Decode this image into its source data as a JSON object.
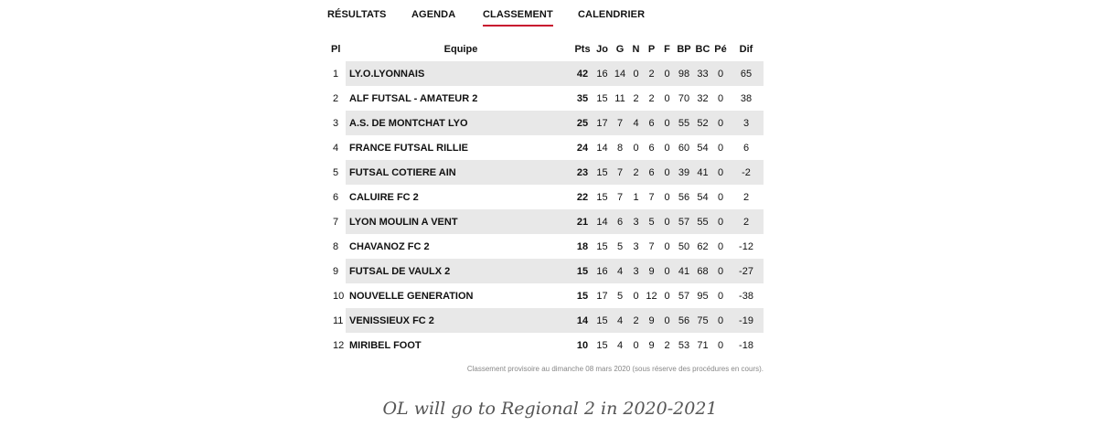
{
  "tabs": [
    {
      "label": "RÉSULTATS"
    },
    {
      "label": "AGENDA"
    },
    {
      "label": "CLASSEMENT"
    },
    {
      "label": "CALENDRIER"
    }
  ],
  "active_tab": "CLASSEMENT",
  "table": {
    "headers": [
      "Pl",
      "Equipe",
      "Pts",
      "Jo",
      "G",
      "N",
      "P",
      "F",
      "BP",
      "BC",
      "Pé",
      "Dif"
    ],
    "rows": [
      [
        "1",
        "LY.O.LYONNAIS",
        "42",
        "16",
        "14",
        "0",
        "2",
        "0",
        "98",
        "33",
        "0",
        "65"
      ],
      [
        "2",
        "ALF FUTSAL - AMATEUR 2",
        "35",
        "15",
        "11",
        "2",
        "2",
        "0",
        "70",
        "32",
        "0",
        "38"
      ],
      [
        "3",
        "A.S. DE MONTCHAT LYO",
        "25",
        "17",
        "7",
        "4",
        "6",
        "0",
        "55",
        "52",
        "0",
        "3"
      ],
      [
        "4",
        "FRANCE FUTSAL RILLIE",
        "24",
        "14",
        "8",
        "0",
        "6",
        "0",
        "60",
        "54",
        "0",
        "6"
      ],
      [
        "5",
        "FUTSAL COTIERE AIN",
        "23",
        "15",
        "7",
        "2",
        "6",
        "0",
        "39",
        "41",
        "0",
        "-2"
      ],
      [
        "6",
        "CALUIRE FC 2",
        "22",
        "15",
        "7",
        "1",
        "7",
        "0",
        "56",
        "54",
        "0",
        "2"
      ],
      [
        "7",
        "LYON MOULIN A VENT",
        "21",
        "14",
        "6",
        "3",
        "5",
        "0",
        "57",
        "55",
        "0",
        "2"
      ],
      [
        "8",
        "CHAVANOZ FC 2",
        "18",
        "15",
        "5",
        "3",
        "7",
        "0",
        "50",
        "62",
        "0",
        "-12"
      ],
      [
        "9",
        "FUTSAL DE VAULX 2",
        "15",
        "16",
        "4",
        "3",
        "9",
        "0",
        "41",
        "68",
        "0",
        "-27"
      ],
      [
        "10",
        "NOUVELLE GENERATION",
        "15",
        "17",
        "5",
        "0",
        "12",
        "0",
        "57",
        "95",
        "0",
        "-38"
      ],
      [
        "11",
        "VENISSIEUX FC 2",
        "14",
        "15",
        "4",
        "2",
        "9",
        "0",
        "56",
        "75",
        "0",
        "-19"
      ],
      [
        "12",
        "MIRIBEL FOOT",
        "10",
        "15",
        "4",
        "0",
        "9",
        "2",
        "53",
        "71",
        "0",
        "-18"
      ]
    ]
  },
  "note": "Classement provisoire au dimanche 08 mars 2020 (sous réserve des procédures en cours).",
  "caption": "OL will go to Regional 2 in 2020-2021",
  "colors": {
    "accent": "#c8102e",
    "row_alt": "#e8e8e8"
  }
}
